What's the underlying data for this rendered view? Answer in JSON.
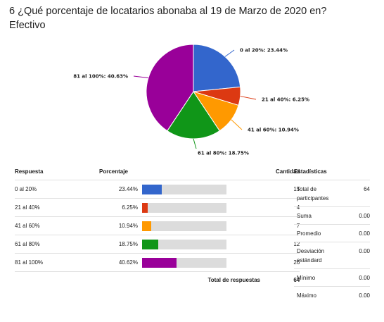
{
  "question": "6 ¿Qué porcentaje de locatarios abonaba al 19 de Marzo de 2020 en? Efectivo",
  "chart_data": {
    "type": "pie",
    "slices": [
      {
        "label": "0 al 20%",
        "value": 23.44,
        "display": "0 al 20%: 23.44%",
        "color": "#3366cc"
      },
      {
        "label": "21 al 40%",
        "value": 6.25,
        "display": "21 al 40%: 6.25%",
        "color": "#dc3912"
      },
      {
        "label": "41 al 60%",
        "value": 10.94,
        "display": "41 al 60%: 10.94%",
        "color": "#ff9900"
      },
      {
        "label": "61 al 80%",
        "value": 18.75,
        "display": "61 al 80%: 18.75%",
        "color": "#109618"
      },
      {
        "label": "81 al 100%",
        "value": 40.63,
        "display": "81 al 100%: 40.63%",
        "color": "#990099"
      }
    ]
  },
  "table": {
    "headers": {
      "respuesta": "Respuesta",
      "porcentaje": "Porcentaje",
      "cantidad": "Cantidad"
    },
    "rows": [
      {
        "label": "0 al 20%",
        "pct": "23.44%",
        "value": 23.44,
        "count": "15",
        "color": "#3366cc"
      },
      {
        "label": "21 al 40%",
        "pct": "6.25%",
        "value": 6.25,
        "count": "4",
        "color": "#dc3912"
      },
      {
        "label": "41 al 60%",
        "pct": "10.94%",
        "value": 10.94,
        "count": "7",
        "color": "#ff9900"
      },
      {
        "label": "61 al 80%",
        "pct": "18.75%",
        "value": 18.75,
        "count": "12",
        "color": "#109618"
      },
      {
        "label": "81 al 100%",
        "pct": "40.62%",
        "value": 40.62,
        "count": "26",
        "color": "#990099"
      }
    ],
    "total_label": "Total de respuestas",
    "total_value": "64"
  },
  "stats": {
    "title": "Estadísticas",
    "rows": [
      {
        "label": "Total de participantes",
        "value": "64"
      },
      {
        "label": "Suma",
        "value": "0.00"
      },
      {
        "label": "Promedio",
        "value": "0.00"
      },
      {
        "label": "Desviación estándard",
        "value": "0.00"
      },
      {
        "label": "Mínimo",
        "value": "0.00"
      },
      {
        "label": "Máximo",
        "value": "0.00"
      }
    ]
  }
}
